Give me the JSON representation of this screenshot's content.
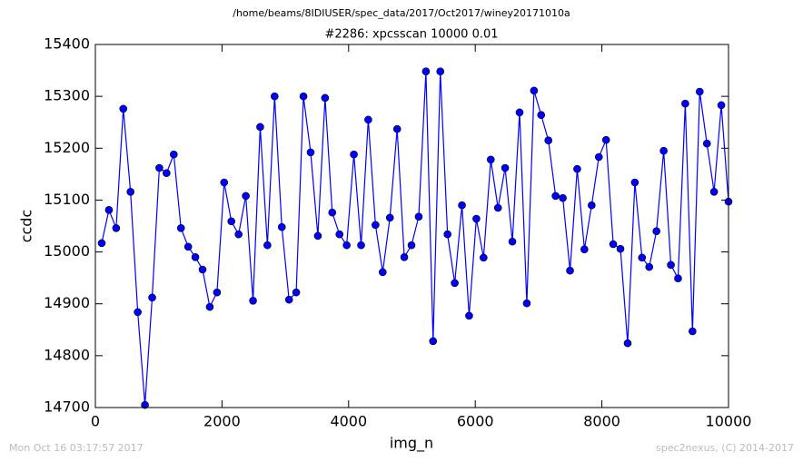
{
  "chart_data": {
    "type": "line",
    "suptitle": "/home/beams/8IDIUSER/spec_data/2017/Oct2017/winey20171010a",
    "title": "#2286: xpcsscan 10000 0.01",
    "x_label": "img_n",
    "y_label": "ccdc",
    "footer_left": "Mon Oct 16 03:17:57 2017",
    "footer_right": "spec2nexus, (C) 2014-2017",
    "x": [
      100,
      214,
      328,
      441,
      555,
      669,
      783,
      897,
      1010,
      1124,
      1238,
      1352,
      1466,
      1579,
      1693,
      1807,
      1921,
      2034,
      2148,
      2262,
      2376,
      2490,
      2603,
      2717,
      2831,
      2945,
      3059,
      3172,
      3286,
      3400,
      3514,
      3628,
      3741,
      3855,
      3969,
      4083,
      4197,
      4310,
      4424,
      4538,
      4652,
      4766,
      4879,
      4993,
      5107,
      5221,
      5334,
      5448,
      5562,
      5676,
      5790,
      5903,
      6017,
      6131,
      6245,
      6359,
      6472,
      6586,
      6700,
      6814,
      6928,
      7041,
      7155,
      7269,
      7383,
      7497,
      7610,
      7724,
      7838,
      7952,
      8066,
      8179,
      8293,
      8407,
      8521,
      8634,
      8748,
      8862,
      8976,
      9090,
      9203,
      9317,
      9431,
      9545,
      9659,
      9772,
      9886,
      10000
    ],
    "series": [
      {
        "color": "#0000ff",
        "marker_edge": "#000000",
        "values": [
          15017,
          15081,
          15046,
          15276,
          15116,
          14884,
          14705,
          14912,
          15162,
          15152,
          15188,
          15046,
          15010,
          14990,
          14966,
          14894,
          14922,
          15134,
          15059,
          15034,
          15108,
          14906,
          15241,
          15013,
          15300,
          15048,
          14908,
          14922,
          15300,
          15192,
          15031,
          15297,
          15076,
          15034,
          15013,
          15188,
          15013,
          15255,
          15052,
          14961,
          15066,
          15237,
          14990,
          15013,
          15068,
          15348,
          14828,
          15348,
          15034,
          14940,
          15090,
          14877,
          15064,
          14989,
          15178,
          15085,
          15162,
          15020,
          15269,
          14901,
          15311,
          15264,
          15215,
          15108,
          15104,
          14964,
          15160,
          15005,
          15090,
          15183,
          15216,
          15015,
          15006,
          14824,
          15134,
          14989,
          14971,
          15040,
          15195,
          14975,
          14949,
          15286,
          14847,
          15309,
          15209,
          15116,
          15283,
          15097
        ]
      }
    ],
    "xlim": [
      0,
      10000
    ],
    "xticks": [
      0,
      2000,
      4000,
      6000,
      8000,
      10000
    ],
    "ylim": [
      14700,
      15400
    ],
    "yticks": [
      14700,
      14800,
      14900,
      15000,
      15100,
      15200,
      15300,
      15400
    ],
    "grid": false
  }
}
